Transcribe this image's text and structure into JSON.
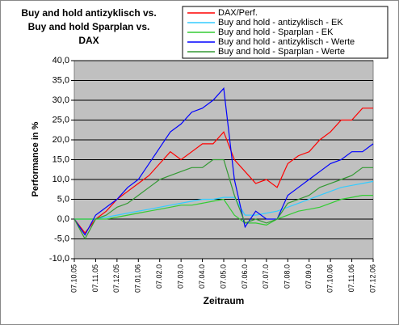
{
  "chart_data": {
    "type": "line",
    "title": [
      "Buy and hold antizyklisch vs.",
      "Buy and hold Sparplan vs.",
      "DAX"
    ],
    "y_label": "Performance in %",
    "x_label": "Zeitraum",
    "categories": [
      "07.10.05",
      null,
      "07.11.05",
      null,
      "07.12.05",
      null,
      "07.01.06",
      null,
      "07.02.0",
      null,
      "07.03.0",
      null,
      "07.04.0",
      null,
      "07.05.0",
      null,
      "07.06.0",
      null,
      "07.07.0",
      null,
      "07.08.0",
      null,
      "07.09.0",
      null,
      "07.10.06",
      null,
      "07.11.06",
      null,
      "07.12.06"
    ],
    "ylim": [
      -10,
      40
    ],
    "yticks": [
      {
        "value": -10,
        "label": "-10,0"
      },
      {
        "value": -5,
        "label": "-5,0"
      },
      {
        "value": 0,
        "label": "0,0"
      },
      {
        "value": 5,
        "label": "5,0"
      },
      {
        "value": 10,
        "label": "10,0"
      },
      {
        "value": 15,
        "label": "15,0"
      },
      {
        "value": 20,
        "label": "20,0"
      },
      {
        "value": 25,
        "label": "25,0"
      },
      {
        "value": 30,
        "label": "30,0"
      },
      {
        "value": 35,
        "label": "35,0"
      },
      {
        "value": 40,
        "label": "40,0"
      }
    ],
    "grid": true,
    "legend": "top-right",
    "series": [
      {
        "name": "DAX/Perf.",
        "color": "#ff0000",
        "values": [
          0,
          -3.5,
          0,
          2,
          5,
          7,
          9,
          11,
          14,
          17,
          15,
          17,
          19,
          19,
          22,
          15,
          12,
          9,
          10,
          8,
          14,
          16,
          17,
          20,
          22,
          25,
          25,
          28,
          28
        ]
      },
      {
        "name": "Buy and hold - antizyklisch - EK",
        "color": "#33ccff",
        "values": [
          0,
          0,
          0,
          0.5,
          1,
          1.5,
          2,
          2.5,
          3,
          3.5,
          4,
          4.5,
          5,
          5,
          5.5,
          5.5,
          1,
          1,
          1.5,
          2,
          3,
          4,
          5,
          6,
          7,
          8,
          8.5,
          9,
          9.5
        ]
      },
      {
        "name": "Buy and hold - Sparplan - EK",
        "color": "#33cc33",
        "values": [
          0,
          0,
          0,
          0,
          0.5,
          1,
          1.5,
          2,
          2.5,
          3,
          3.5,
          3.5,
          4,
          4.5,
          5,
          1,
          -1,
          -1,
          -1.5,
          0,
          1,
          2,
          2.5,
          3,
          4,
          5,
          5.5,
          6,
          6
        ]
      },
      {
        "name": "Buy and hold - antizyklisch - Werte",
        "color": "#0000ff",
        "values": [
          0,
          -4,
          1,
          3,
          5,
          8,
          10,
          14,
          18,
          22,
          24,
          27,
          28,
          30,
          33,
          10,
          -2,
          2,
          0,
          0,
          6,
          8,
          10,
          12,
          14,
          15,
          17,
          17,
          19
        ]
      },
      {
        "name": "Buy and hold - Sparplan - Werte",
        "color": "#339933",
        "values": [
          0,
          -5,
          0,
          1,
          3,
          4,
          6,
          8,
          10,
          11,
          12,
          13,
          13,
          15,
          15,
          6,
          -1,
          0,
          -1,
          0,
          4,
          5,
          6,
          8,
          9,
          10,
          11,
          13,
          13
        ]
      }
    ]
  }
}
